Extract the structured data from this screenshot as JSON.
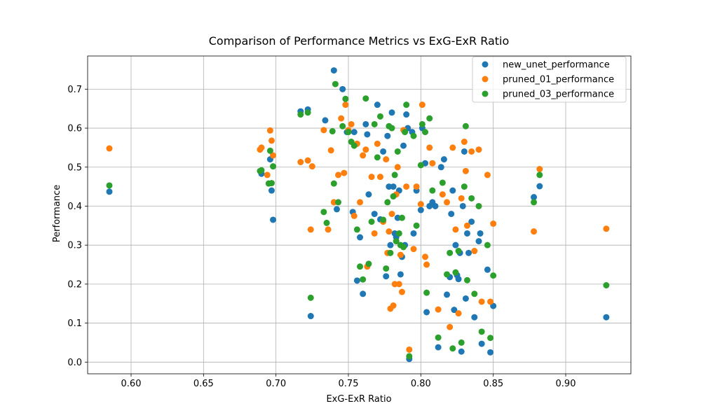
{
  "chart_data": {
    "type": "scatter",
    "title": "Comparison of Performance Metrics vs ExG-ExR Ratio",
    "xlabel": "ExG-ExR Ratio",
    "ylabel": "Performance",
    "xlim": [
      0.57,
      0.945
    ],
    "ylim": [
      -0.03,
      0.785
    ],
    "xticks": [
      0.6,
      0.65,
      0.7,
      0.75,
      0.8,
      0.85,
      0.9
    ],
    "xtick_labels": [
      "0.60",
      "0.65",
      "0.70",
      "0.75",
      "0.80",
      "0.85",
      "0.90"
    ],
    "yticks": [
      0.0,
      0.1,
      0.2,
      0.3,
      0.4,
      0.5,
      0.6,
      0.7
    ],
    "ytick_labels": [
      "0.0",
      "0.1",
      "0.2",
      "0.3",
      "0.4",
      "0.5",
      "0.6",
      "0.7"
    ],
    "grid": true,
    "legend_position": "top-right",
    "series": [
      {
        "name": "new_unet_performance",
        "color": "#1f77b4",
        "x": [
          0.585,
          0.69,
          0.696,
          0.697,
          0.698,
          0.717,
          0.722,
          0.724,
          0.734,
          0.74,
          0.742,
          0.746,
          0.749,
          0.753,
          0.754,
          0.756,
          0.758,
          0.76,
          0.762,
          0.763,
          0.764,
          0.768,
          0.77,
          0.772,
          0.774,
          0.776,
          0.777,
          0.778,
          0.779,
          0.78,
          0.781,
          0.782,
          0.783,
          0.784,
          0.785,
          0.786,
          0.787,
          0.788,
          0.789,
          0.79,
          0.791,
          0.792,
          0.794,
          0.795,
          0.797,
          0.8,
          0.801,
          0.803,
          0.804,
          0.806,
          0.808,
          0.81,
          0.812,
          0.814,
          0.816,
          0.818,
          0.82,
          0.821,
          0.822,
          0.823,
          0.824,
          0.825,
          0.826,
          0.827,
          0.828,
          0.829,
          0.83,
          0.831,
          0.832,
          0.833,
          0.835,
          0.837,
          0.84,
          0.841,
          0.842,
          0.846,
          0.848,
          0.85,
          0.878,
          0.882,
          0.928
        ],
        "y": [
          0.437,
          0.483,
          0.52,
          0.44,
          0.365,
          0.643,
          0.648,
          0.118,
          0.62,
          0.748,
          0.392,
          0.7,
          0.59,
          0.385,
          0.59,
          0.209,
          0.32,
          0.175,
          0.61,
          0.584,
          0.43,
          0.38,
          0.66,
          0.366,
          0.54,
          0.22,
          0.58,
          0.45,
          0.3,
          0.64,
          0.45,
          0.33,
          0.32,
          0.37,
          0.44,
          0.225,
          0.27,
          0.555,
          0.3,
          0.635,
          0.6,
          0.008,
          0.59,
          0.33,
          0.44,
          0.39,
          0.6,
          0.51,
          0.128,
          0.4,
          0.41,
          0.4,
          0.038,
          0.5,
          0.52,
          0.173,
          0.218,
          0.38,
          0.44,
          0.134,
          0.3,
          0.223,
          0.213,
          0.28,
          0.027,
          0.4,
          0.54,
          0.163,
          0.33,
          0.28,
          0.36,
          0.115,
          0.31,
          0.33,
          0.047,
          0.237,
          0.025,
          0.144,
          0.423,
          0.451,
          0.115
        ]
      },
      {
        "name": "pruned_01_performance",
        "color": "#ff7f0e",
        "x": [
          0.585,
          0.689,
          0.69,
          0.694,
          0.696,
          0.697,
          0.698,
          0.717,
          0.722,
          0.724,
          0.725,
          0.733,
          0.736,
          0.738,
          0.74,
          0.743,
          0.745,
          0.747,
          0.748,
          0.75,
          0.752,
          0.754,
          0.756,
          0.758,
          0.76,
          0.762,
          0.763,
          0.766,
          0.768,
          0.77,
          0.772,
          0.774,
          0.776,
          0.777,
          0.778,
          0.779,
          0.78,
          0.781,
          0.782,
          0.783,
          0.784,
          0.785,
          0.786,
          0.787,
          0.788,
          0.79,
          0.792,
          0.795,
          0.797,
          0.8,
          0.801,
          0.803,
          0.804,
          0.806,
          0.808,
          0.812,
          0.815,
          0.818,
          0.82,
          0.822,
          0.824,
          0.826,
          0.828,
          0.83,
          0.831,
          0.832,
          0.835,
          0.837,
          0.84,
          0.842,
          0.846,
          0.848,
          0.85,
          0.878,
          0.882,
          0.928
        ],
        "y": [
          0.548,
          0.545,
          0.55,
          0.48,
          0.594,
          0.568,
          0.53,
          0.513,
          0.517,
          0.34,
          0.502,
          0.595,
          0.34,
          0.543,
          0.41,
          0.48,
          0.625,
          0.485,
          0.66,
          0.595,
          0.61,
          0.375,
          0.56,
          0.41,
          0.53,
          0.545,
          0.245,
          0.475,
          0.33,
          0.56,
          0.475,
          0.36,
          0.52,
          0.28,
          0.335,
          0.137,
          0.38,
          0.145,
          0.2,
          0.43,
          0.5,
          0.2,
          0.275,
          0.18,
          0.595,
          0.45,
          0.032,
          0.29,
          0.45,
          0.405,
          0.66,
          0.27,
          0.25,
          0.55,
          0.51,
          0.135,
          0.43,
          0.41,
          0.09,
          0.55,
          0.34,
          0.125,
          0.42,
          0.565,
          0.49,
          0.35,
          0.54,
          0.285,
          0.545,
          0.155,
          0.48,
          0.155,
          0.355,
          0.335,
          0.495,
          0.342
        ]
      },
      {
        "name": "pruned_03_performance",
        "color": "#2ca02c",
        "x": [
          0.585,
          0.689,
          0.69,
          0.695,
          0.696,
          0.697,
          0.698,
          0.717,
          0.722,
          0.724,
          0.733,
          0.735,
          0.739,
          0.74,
          0.741,
          0.743,
          0.746,
          0.748,
          0.75,
          0.752,
          0.754,
          0.756,
          0.758,
          0.76,
          0.762,
          0.764,
          0.766,
          0.768,
          0.77,
          0.772,
          0.774,
          0.776,
          0.777,
          0.778,
          0.779,
          0.78,
          0.781,
          0.782,
          0.783,
          0.784,
          0.785,
          0.786,
          0.787,
          0.788,
          0.789,
          0.79,
          0.792,
          0.795,
          0.797,
          0.8,
          0.801,
          0.803,
          0.804,
          0.806,
          0.808,
          0.812,
          0.815,
          0.818,
          0.82,
          0.822,
          0.824,
          0.826,
          0.828,
          0.83,
          0.831,
          0.832,
          0.835,
          0.837,
          0.84,
          0.842,
          0.846,
          0.848,
          0.85,
          0.878,
          0.882,
          0.928
        ],
        "y": [
          0.453,
          0.49,
          0.492,
          0.458,
          0.542,
          0.459,
          0.502,
          0.635,
          0.64,
          0.165,
          0.385,
          0.357,
          0.592,
          0.458,
          0.713,
          0.41,
          0.605,
          0.675,
          0.59,
          0.565,
          0.555,
          0.34,
          0.245,
          0.212,
          0.676,
          0.252,
          0.36,
          0.61,
          0.525,
          0.63,
          0.365,
          0.24,
          0.41,
          0.605,
          0.28,
          0.6,
          0.425,
          0.48,
          0.31,
          0.54,
          0.33,
          0.3,
          0.37,
          0.295,
          0.59,
          0.66,
          0.015,
          0.58,
          0.35,
          0.505,
          0.61,
          0.59,
          0.178,
          0.625,
          0.44,
          0.063,
          0.46,
          0.225,
          0.28,
          0.035,
          0.23,
          0.285,
          0.05,
          0.45,
          0.605,
          0.21,
          0.42,
          0.175,
          0.4,
          0.078,
          0.3,
          0.062,
          0.222,
          0.41,
          0.48,
          0.197
        ]
      }
    ]
  }
}
